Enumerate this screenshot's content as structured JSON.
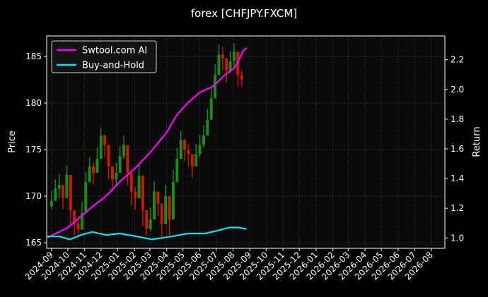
{
  "chart_data": {
    "type": "line",
    "title": "forex [CHFJPY.FXCM]",
    "ylabel_left": "Price",
    "ylabel_right": "Return",
    "x_ticks": [
      "2024-09",
      "2024-10",
      "2024-11",
      "2024-12",
      "2025-01",
      "2025-02",
      "2025-03",
      "2025-04",
      "2025-05",
      "2025-06",
      "2025-07",
      "2025-08",
      "2025-09",
      "2025-10",
      "2025-11",
      "2025-12",
      "2026-01",
      "2026-02",
      "2026-03",
      "2026-04",
      "2026-05",
      "2026-06",
      "2026-07",
      "2026-08"
    ],
    "x_range": [
      "2024-08-23",
      "2026-08-26"
    ],
    "y_left_ticks": [
      165,
      170,
      175,
      180,
      185
    ],
    "y_left_range": [
      164.4,
      187.2
    ],
    "y_right_ticks": [
      1.0,
      1.2,
      1.4,
      1.6,
      1.8,
      2.0,
      2.2
    ],
    "y_right_range": [
      0.93,
      2.36
    ],
    "grid": true,
    "legend_position": "top-left",
    "price_candles": {
      "up_color": "#1a8c1a",
      "down_color": "#cc1a00",
      "dates": [
        "2024-09-01",
        "2024-09-08",
        "2024-09-15",
        "2024-09-22",
        "2024-09-29",
        "2024-10-06",
        "2024-10-13",
        "2024-10-20",
        "2024-10-27",
        "2024-11-03",
        "2024-11-10",
        "2024-11-17",
        "2024-11-24",
        "2024-12-01",
        "2024-12-08",
        "2024-12-15",
        "2024-12-22",
        "2024-12-29",
        "2025-01-05",
        "2025-01-12",
        "2025-01-19",
        "2025-01-26",
        "2025-02-02",
        "2025-02-09",
        "2025-02-16",
        "2025-02-23",
        "2025-03-02",
        "2025-03-09",
        "2025-03-16",
        "2025-03-23",
        "2025-03-30",
        "2025-04-06",
        "2025-04-13",
        "2025-04-20",
        "2025-04-27",
        "2025-05-04",
        "2025-05-11",
        "2025-05-18",
        "2025-05-25",
        "2025-06-01",
        "2025-06-08",
        "2025-06-15",
        "2025-06-22",
        "2025-06-29",
        "2025-07-06",
        "2025-07-13",
        "2025-07-20",
        "2025-07-27",
        "2025-08-03",
        "2025-08-10",
        "2025-08-17"
      ],
      "closes": [
        169.5,
        170.8,
        171.2,
        169.8,
        172.3,
        168.5,
        167.0,
        166.4,
        168.2,
        171.5,
        173.2,
        172.5,
        174.0,
        176.5,
        175.5,
        173.2,
        171.8,
        172.5,
        174.3,
        175.5,
        172.5,
        170.5,
        169.8,
        172.2,
        168.5,
        166.5,
        167.5,
        170.5,
        169.2,
        167.0,
        170.0,
        167.5,
        171.5,
        174.0,
        176.0,
        175.0,
        174.5,
        173.2,
        174.5,
        175.5,
        176.5,
        178.2,
        180.5,
        183.0,
        185.2,
        184.8,
        183.5,
        184.5,
        185.5,
        183.0,
        182.5
      ],
      "lows": [
        168.6,
        169.5,
        169.8,
        168.6,
        171.0,
        167.0,
        165.8,
        165.5,
        166.6,
        170.0,
        171.8,
        171.2,
        172.5,
        175.0,
        174.2,
        171.8,
        170.5,
        171.2,
        172.6,
        174.0,
        171.2,
        169.0,
        168.6,
        170.8,
        166.8,
        165.8,
        166.2,
        169.0,
        167.8,
        165.6,
        168.5,
        165.8,
        170.0,
        172.4,
        174.5,
        173.8,
        173.2,
        172.0,
        173.2,
        174.2,
        175.2,
        176.8,
        179.0,
        181.5,
        183.6,
        183.5,
        182.2,
        183.2,
        183.8,
        181.8,
        181.8
      ],
      "highs": [
        170.6,
        171.8,
        172.4,
        171.0,
        173.3,
        169.8,
        168.2,
        167.6,
        169.4,
        172.6,
        174.2,
        173.6,
        175.2,
        177.3,
        176.6,
        174.4,
        173.0,
        173.6,
        175.4,
        176.5,
        173.8,
        171.8,
        171.0,
        173.4,
        170.0,
        167.8,
        168.8,
        171.6,
        170.4,
        168.4,
        171.2,
        169.0,
        172.8,
        175.2,
        177.0,
        176.2,
        175.6,
        174.4,
        175.6,
        176.6,
        177.6,
        179.4,
        181.8,
        184.2,
        186.3,
        186.0,
        184.8,
        185.6,
        186.4,
        184.2,
        183.5
      ]
    },
    "series": [
      {
        "name": "Swtool.com AI",
        "axis": "right",
        "color": "#ff00ff",
        "x": [
          "2024-08-23",
          "2024-09-15",
          "2024-10-01",
          "2024-10-20",
          "2024-11-15",
          "2024-12-10",
          "2025-01-05",
          "2025-02-05",
          "2025-03-05",
          "2025-04-01",
          "2025-04-20",
          "2025-05-10",
          "2025-06-01",
          "2025-06-25",
          "2025-07-15",
          "2025-08-05",
          "2025-08-20",
          "2025-08-26"
        ],
        "values": [
          1.0,
          1.04,
          1.07,
          1.13,
          1.21,
          1.28,
          1.38,
          1.48,
          1.59,
          1.71,
          1.83,
          1.91,
          1.98,
          2.02,
          2.09,
          2.15,
          2.26,
          2.28
        ]
      },
      {
        "name": "Buy-and-Hold",
        "axis": "right",
        "color": "#00e5ee",
        "x": [
          "2024-08-23",
          "2024-09-15",
          "2024-10-05",
          "2024-10-25",
          "2024-11-15",
          "2024-12-10",
          "2025-01-05",
          "2025-02-05",
          "2025-03-05",
          "2025-04-10",
          "2025-05-10",
          "2025-06-10",
          "2025-07-05",
          "2025-07-25",
          "2025-08-10",
          "2025-08-26"
        ],
        "values": [
          1.01,
          1.01,
          0.99,
          1.02,
          1.04,
          1.02,
          1.03,
          1.01,
          0.99,
          1.01,
          1.03,
          1.03,
          1.05,
          1.07,
          1.07,
          1.06
        ]
      }
    ]
  }
}
